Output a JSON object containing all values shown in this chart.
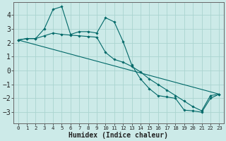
{
  "bg_color": "#cceae8",
  "grid_color": "#aad4d0",
  "line_color": "#006868",
  "marker_color": "#006868",
  "xlabel": "Humidex (Indice chaleur)",
  "xlabel_fontsize": 7,
  "ytick_fontsize": 7,
  "xtick_fontsize": 5.2,
  "yticks": [
    -3,
    -2,
    -1,
    0,
    1,
    2,
    3,
    4
  ],
  "xticks": [
    0,
    1,
    2,
    3,
    4,
    5,
    6,
    7,
    8,
    9,
    10,
    11,
    12,
    13,
    14,
    15,
    16,
    17,
    18,
    19,
    20,
    21,
    22,
    23
  ],
  "xlim": [
    -0.5,
    23.5
  ],
  "ylim": [
    -3.8,
    4.9
  ],
  "line1_x": [
    0,
    1,
    2,
    3,
    4,
    5,
    6,
    7,
    8,
    9,
    10,
    11,
    12,
    13,
    14,
    15,
    16,
    17,
    18,
    19,
    20,
    21,
    22,
    23
  ],
  "line1_y": [
    2.2,
    2.3,
    2.3,
    3.0,
    4.4,
    4.6,
    2.6,
    2.8,
    2.8,
    2.7,
    3.8,
    3.5,
    2.1,
    0.4,
    -0.6,
    -1.3,
    -1.8,
    -1.9,
    -2.0,
    -2.85,
    -2.9,
    -3.0,
    -2.0,
    -1.7
  ],
  "line2_x": [
    0,
    1,
    2,
    3,
    4,
    5,
    6,
    7,
    8,
    9,
    10,
    11,
    12,
    13,
    14,
    15,
    16,
    17,
    18,
    19,
    20,
    21,
    22,
    23
  ],
  "line2_y": [
    2.2,
    2.3,
    2.3,
    2.5,
    2.7,
    2.6,
    2.55,
    2.5,
    2.45,
    2.4,
    1.3,
    0.8,
    0.6,
    0.3,
    -0.1,
    -0.6,
    -1.0,
    -1.4,
    -1.8,
    -2.2,
    -2.6,
    -2.9,
    -1.8,
    -1.7
  ],
  "line3_x": [
    0,
    23
  ],
  "line3_y": [
    2.2,
    -1.7
  ],
  "marker_size": 1.8,
  "line_width": 0.8
}
